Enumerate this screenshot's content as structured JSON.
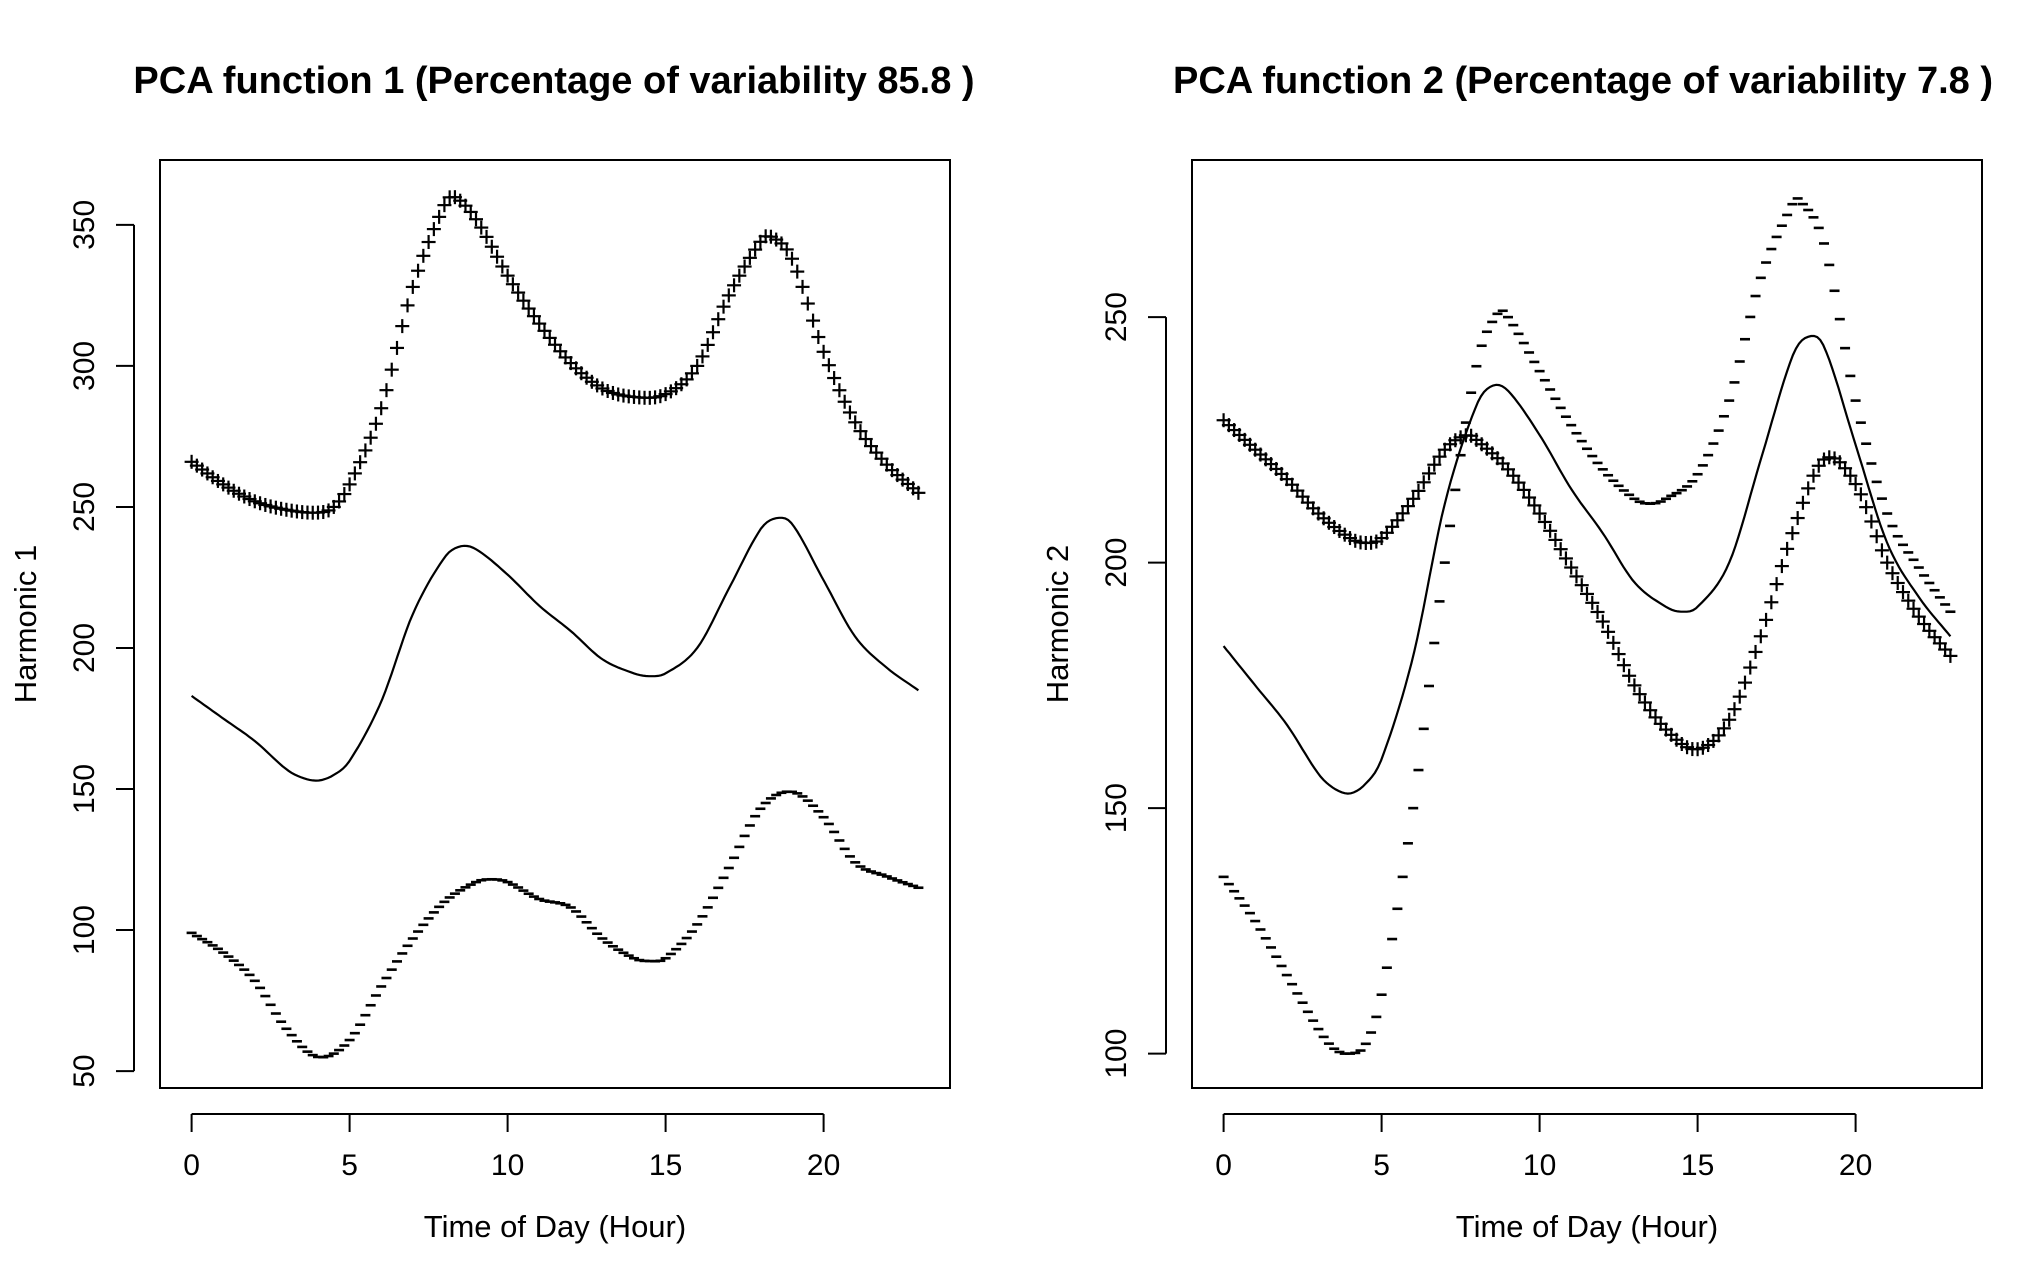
{
  "chart_data": [
    {
      "type": "line",
      "title": "PCA function 1 (Percentage of variability 85.8 )",
      "xlabel": "Time of Day (Hour)",
      "ylabel": "Harmonic 1",
      "xlim": [
        -1,
        24
      ],
      "ylim": [
        44,
        373
      ],
      "xticks": [
        0,
        5,
        10,
        15,
        20
      ],
      "yticks": [
        50,
        100,
        150,
        200,
        250,
        300,
        350
      ],
      "grid": false,
      "legend": "none",
      "series": [
        {
          "style": "line",
          "x": [
            0,
            1,
            2,
            3,
            3.5,
            4,
            4.5,
            5,
            6,
            7,
            8,
            8.5,
            9,
            10,
            11,
            12,
            13,
            14,
            14.5,
            15,
            16,
            17,
            18,
            18.5,
            19,
            20,
            21,
            22,
            23
          ],
          "values": [
            183,
            175,
            167,
            157,
            154,
            153,
            155,
            160,
            181,
            212,
            232,
            236,
            235,
            226,
            215,
            206,
            196,
            191,
            190,
            191,
            200,
            221,
            242,
            246,
            244,
            224,
            204,
            193,
            185
          ]
        },
        {
          "style": "plus-markers",
          "x": [
            0,
            1,
            2,
            3,
            4,
            4.5,
            5,
            6,
            7,
            8,
            8.3,
            9,
            10,
            11,
            12,
            13,
            14,
            15,
            16,
            17,
            18,
            18.3,
            19,
            20,
            21,
            22,
            23
          ],
          "values": [
            266,
            258,
            252,
            249,
            248,
            250,
            258,
            285,
            328,
            357,
            360,
            352,
            332,
            315,
            301,
            292,
            289,
            290,
            300,
            325,
            344,
            346,
            338,
            305,
            280,
            265,
            255
          ]
        },
        {
          "style": "minus-markers",
          "x": [
            0,
            1,
            2,
            3,
            4,
            5,
            6,
            7,
            8,
            9,
            9.5,
            10,
            11,
            12,
            13,
            14,
            14.5,
            15,
            16,
            17,
            18,
            19,
            20,
            21,
            22,
            23
          ],
          "values": [
            99,
            92,
            82,
            65,
            55,
            61,
            80,
            97,
            110,
            117,
            118,
            117,
            111,
            108,
            97,
            90,
            89,
            90,
            102,
            122,
            143,
            149,
            140,
            124,
            119,
            115
          ]
        }
      ]
    },
    {
      "type": "line",
      "title": "PCA function 2 (Percentage of variability 7.8 )",
      "xlabel": "Time of Day (Hour)",
      "ylabel": "Harmonic 2",
      "xlim": [
        -1,
        24
      ],
      "ylim": [
        93,
        282
      ],
      "xticks": [
        0,
        5,
        10,
        15,
        20
      ],
      "yticks": [
        100,
        150,
        200,
        250
      ],
      "grid": false,
      "legend": "none",
      "series": [
        {
          "style": "line",
          "x": [
            0,
            1,
            2,
            3,
            3.5,
            4,
            4.5,
            5,
            6,
            7,
            8,
            8.5,
            9,
            10,
            11,
            12,
            13,
            14,
            14.5,
            15,
            16,
            17,
            18,
            18.5,
            19,
            20,
            21,
            22,
            23
          ],
          "values": [
            183,
            175,
            167,
            157,
            154,
            153,
            155,
            160,
            181,
            212,
            232,
            236,
            235,
            226,
            215,
            206,
            196,
            191,
            190,
            191,
            200,
            221,
            242,
            246,
            244,
            224,
            204,
            193,
            185
          ]
        },
        {
          "style": "plus-markers",
          "x": [
            0,
            1,
            2,
            3,
            4,
            4.5,
            5,
            6,
            7,
            7.7,
            8,
            9,
            10,
            11,
            12,
            13,
            14,
            15,
            16,
            17,
            18,
            19,
            20,
            21,
            22,
            23
          ],
          "values": [
            229,
            223,
            217,
            210,
            205,
            204,
            205,
            213,
            223,
            226,
            225,
            219,
            210,
            199,
            188,
            175,
            166,
            162,
            168,
            185,
            206,
            221,
            216,
            200,
            189,
            181
          ]
        },
        {
          "style": "minus-markers",
          "x": [
            0,
            1,
            2,
            3,
            3.5,
            4,
            4.5,
            5,
            6,
            7,
            8,
            8.7,
            9,
            10,
            11,
            12,
            13,
            13.5,
            14,
            15,
            16,
            17,
            18,
            18.2,
            19,
            20,
            21,
            22,
            23
          ],
          "values": [
            136,
            127,
            116,
            105,
            101,
            100,
            102,
            112,
            150,
            200,
            240,
            251,
            250,
            239,
            228,
            219,
            213,
            212,
            213,
            218,
            233,
            258,
            273,
            274,
            265,
            233,
            210,
            199,
            190
          ]
        }
      ]
    }
  ]
}
